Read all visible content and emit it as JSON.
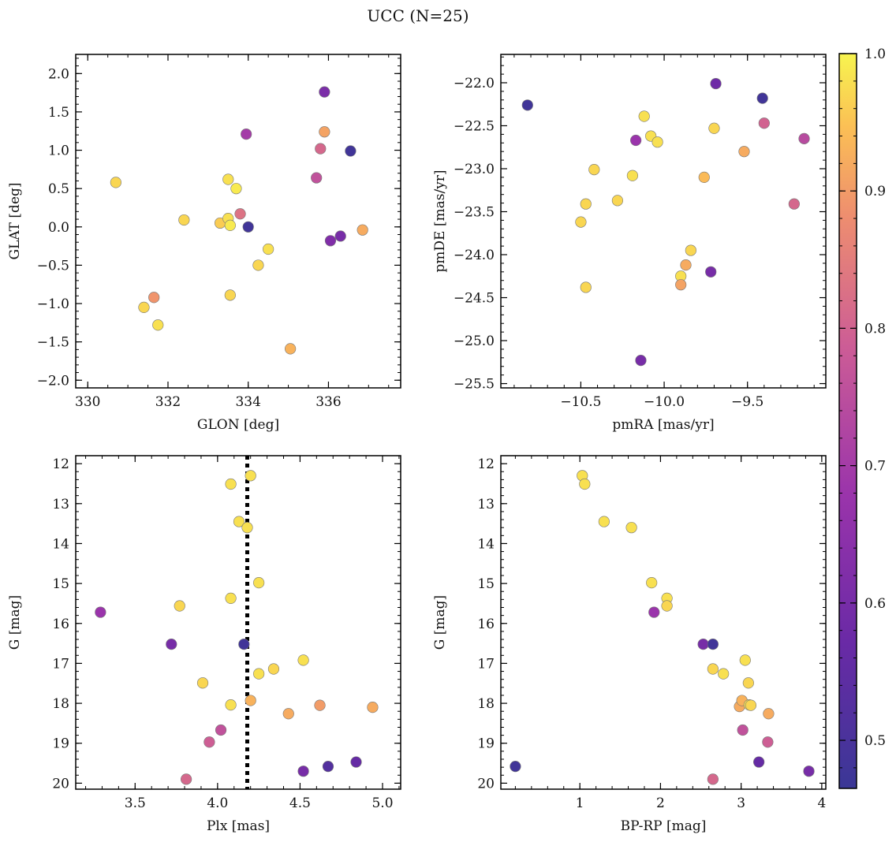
{
  "figure": {
    "title": "UCC (N=25)"
  },
  "colorbar": {
    "range": [
      0.465,
      1.0
    ],
    "ticks": [
      0.5,
      0.6,
      0.7,
      0.8,
      0.9,
      1.0
    ],
    "tick_labels": [
      "0.5",
      "0.6",
      "0.7",
      "0.8",
      "0.9",
      "1.0"
    ],
    "colormap": "plasma"
  },
  "chart_data": [
    {
      "type": "scatter",
      "id": "glon-glat",
      "xlabel": "GLON [deg]",
      "ylabel": "GLAT [deg]",
      "xlim": [
        329.7,
        337.8
      ],
      "ylim": [
        -2.1,
        2.25
      ],
      "y_inverted": false,
      "xticks": [
        330,
        332,
        334,
        336
      ],
      "xtick_labels": [
        "330",
        "332",
        "334",
        "336"
      ],
      "yticks": [
        -2.0,
        -1.5,
        -1.0,
        -0.5,
        0.0,
        0.5,
        1.0,
        1.5,
        2.0
      ],
      "ytick_labels": [
        "−2.0",
        "−1.5",
        "−1.0",
        "−0.5",
        "0.0",
        "0.5",
        "1.0",
        "1.5",
        "2.0"
      ],
      "x_minor_step": 0.5,
      "y_minor_step": 0.1,
      "points": [
        {
          "x": 330.7,
          "y": 0.58,
          "c": 0.97
        },
        {
          "x": 331.4,
          "y": -1.05,
          "c": 0.97
        },
        {
          "x": 331.65,
          "y": -0.92,
          "c": 0.89
        },
        {
          "x": 331.75,
          "y": -1.28,
          "c": 0.98
        },
        {
          "x": 332.4,
          "y": 0.09,
          "c": 0.97
        },
        {
          "x": 333.3,
          "y": 0.05,
          "c": 0.96
        },
        {
          "x": 333.5,
          "y": 0.62,
          "c": 0.98
        },
        {
          "x": 333.5,
          "y": 0.11,
          "c": 0.98
        },
        {
          "x": 333.55,
          "y": 0.02,
          "c": 0.99
        },
        {
          "x": 333.55,
          "y": -0.89,
          "c": 0.97
        },
        {
          "x": 333.7,
          "y": 0.5,
          "c": 0.99
        },
        {
          "x": 333.8,
          "y": 0.17,
          "c": 0.83
        },
        {
          "x": 333.95,
          "y": 1.21,
          "c": 0.7
        },
        {
          "x": 334.0,
          "y": 0.0,
          "c": 0.48
        },
        {
          "x": 334.25,
          "y": -0.5,
          "c": 0.97
        },
        {
          "x": 334.5,
          "y": -0.29,
          "c": 0.98
        },
        {
          "x": 335.05,
          "y": -1.59,
          "c": 0.93
        },
        {
          "x": 335.7,
          "y": 0.64,
          "c": 0.76
        },
        {
          "x": 335.8,
          "y": 1.02,
          "c": 0.81
        },
        {
          "x": 335.9,
          "y": 1.76,
          "c": 0.61
        },
        {
          "x": 335.9,
          "y": 1.24,
          "c": 0.91
        },
        {
          "x": 336.05,
          "y": -0.18,
          "c": 0.62
        },
        {
          "x": 336.3,
          "y": -0.12,
          "c": 0.6
        },
        {
          "x": 336.55,
          "y": 0.99,
          "c": 0.48
        },
        {
          "x": 336.85,
          "y": -0.04,
          "c": 0.92
        }
      ]
    },
    {
      "type": "scatter",
      "id": "pmra-pmde",
      "xlabel": "pmRA [mas/yr]",
      "ylabel": "pmDE [mas/yr]",
      "xlim": [
        -10.98,
        -9.03
      ],
      "ylim": [
        -25.55,
        -21.67
      ],
      "y_inverted": false,
      "xticks": [
        -10.5,
        -10.0,
        -9.5
      ],
      "xtick_labels": [
        "−10.5",
        "−10.0",
        "−9.5"
      ],
      "yticks": [
        -25.5,
        -25.0,
        -24.5,
        -24.0,
        -23.5,
        -23.0,
        -22.5,
        -22.0
      ],
      "ytick_labels": [
        "−25.5",
        "−25.0",
        "−24.5",
        "−24.0",
        "−23.5",
        "−23.0",
        "−22.5",
        "−22.0"
      ],
      "x_minor_step": 0.1,
      "y_minor_step": 0.1,
      "points": [
        {
          "x": -10.82,
          "y": -22.26,
          "c": 0.48
        },
        {
          "x": -10.5,
          "y": -23.62,
          "c": 0.97
        },
        {
          "x": -10.47,
          "y": -23.41,
          "c": 0.97
        },
        {
          "x": -10.47,
          "y": -24.38,
          "c": 0.97
        },
        {
          "x": -10.42,
          "y": -23.01,
          "c": 0.97
        },
        {
          "x": -10.28,
          "y": -23.37,
          "c": 0.97
        },
        {
          "x": -10.19,
          "y": -23.08,
          "c": 0.98
        },
        {
          "x": -10.17,
          "y": -22.67,
          "c": 0.68
        },
        {
          "x": -10.14,
          "y": -25.23,
          "c": 0.6
        },
        {
          "x": -10.12,
          "y": -22.39,
          "c": 0.98
        },
        {
          "x": -10.08,
          "y": -22.62,
          "c": 0.98
        },
        {
          "x": -10.04,
          "y": -22.69,
          "c": 0.98
        },
        {
          "x": -9.9,
          "y": -24.25,
          "c": 0.98
        },
        {
          "x": -9.9,
          "y": -24.35,
          "c": 0.91
        },
        {
          "x": -9.87,
          "y": -24.12,
          "c": 0.92
        },
        {
          "x": -9.84,
          "y": -23.95,
          "c": 0.97
        },
        {
          "x": -9.76,
          "y": -23.1,
          "c": 0.94
        },
        {
          "x": -9.72,
          "y": -24.2,
          "c": 0.6
        },
        {
          "x": -9.7,
          "y": -22.53,
          "c": 0.97
        },
        {
          "x": -9.69,
          "y": -22.01,
          "c": 0.58
        },
        {
          "x": -9.52,
          "y": -22.8,
          "c": 0.92
        },
        {
          "x": -9.41,
          "y": -22.18,
          "c": 0.48
        },
        {
          "x": -9.4,
          "y": -22.47,
          "c": 0.8
        },
        {
          "x": -9.22,
          "y": -23.41,
          "c": 0.81
        },
        {
          "x": -9.16,
          "y": -22.65,
          "c": 0.74
        }
      ]
    },
    {
      "type": "scatter",
      "id": "plx-g",
      "xlabel": "Plx [mas]",
      "ylabel": "G [mag]",
      "xlim": [
        3.14,
        5.11
      ],
      "ylim": [
        20.15,
        11.8
      ],
      "y_inverted": true,
      "xticks": [
        3.5,
        4.0,
        4.5,
        5.0
      ],
      "xtick_labels": [
        "3.5",
        "4.0",
        "4.5",
        "5.0"
      ],
      "yticks": [
        12,
        13,
        14,
        15,
        16,
        17,
        18,
        19,
        20
      ],
      "ytick_labels": [
        "12",
        "13",
        "14",
        "15",
        "16",
        "17",
        "18",
        "19",
        "20"
      ],
      "x_minor_step": 0.1,
      "y_minor_step": 0.2,
      "vline": {
        "x": 4.18,
        "style": "dotted",
        "color": "#000000"
      },
      "points": [
        {
          "x": 3.29,
          "y": 15.72,
          "c": 0.68
        },
        {
          "x": 3.72,
          "y": 16.52,
          "c": 0.6
        },
        {
          "x": 3.77,
          "y": 15.56,
          "c": 0.97
        },
        {
          "x": 3.81,
          "y": 19.9,
          "c": 0.81
        },
        {
          "x": 3.91,
          "y": 17.49,
          "c": 0.97
        },
        {
          "x": 3.95,
          "y": 18.97,
          "c": 0.79
        },
        {
          "x": 4.02,
          "y": 18.67,
          "c": 0.76
        },
        {
          "x": 4.08,
          "y": 12.51,
          "c": 0.98
        },
        {
          "x": 4.08,
          "y": 15.37,
          "c": 0.98
        },
        {
          "x": 4.08,
          "y": 18.04,
          "c": 0.98
        },
        {
          "x": 4.13,
          "y": 13.45,
          "c": 0.98
        },
        {
          "x": 4.16,
          "y": 16.52,
          "c": 0.48
        },
        {
          "x": 4.18,
          "y": 13.6,
          "c": 0.98
        },
        {
          "x": 4.2,
          "y": 12.3,
          "c": 0.98
        },
        {
          "x": 4.2,
          "y": 17.93,
          "c": 0.93
        },
        {
          "x": 4.25,
          "y": 14.98,
          "c": 0.98
        },
        {
          "x": 4.25,
          "y": 17.26,
          "c": 0.98
        },
        {
          "x": 4.34,
          "y": 17.14,
          "c": 0.97
        },
        {
          "x": 4.43,
          "y": 18.26,
          "c": 0.92
        },
        {
          "x": 4.52,
          "y": 16.92,
          "c": 0.98
        },
        {
          "x": 4.52,
          "y": 19.7,
          "c": 0.6
        },
        {
          "x": 4.62,
          "y": 18.05,
          "c": 0.9
        },
        {
          "x": 4.67,
          "y": 19.58,
          "c": 0.52
        },
        {
          "x": 4.84,
          "y": 19.47,
          "c": 0.56
        },
        {
          "x": 4.94,
          "y": 18.1,
          "c": 0.92
        }
      ]
    },
    {
      "type": "scatter",
      "id": "bprp-g",
      "xlabel": "BP-RP [mag]",
      "ylabel": "G [mag]",
      "xlim": [
        0.02,
        4.05
      ],
      "ylim": [
        20.15,
        11.8
      ],
      "y_inverted": true,
      "xticks": [
        1,
        2,
        3,
        4
      ],
      "xtick_labels": [
        "1",
        "2",
        "3",
        "4"
      ],
      "yticks": [
        12,
        13,
        14,
        15,
        16,
        17,
        18,
        19,
        20
      ],
      "ytick_labels": [
        "12",
        "13",
        "14",
        "15",
        "16",
        "17",
        "18",
        "19",
        "20"
      ],
      "x_minor_step": 0.2,
      "y_minor_step": 0.2,
      "points": [
        {
          "x": 0.2,
          "y": 19.58,
          "c": 0.48
        },
        {
          "x": 1.03,
          "y": 12.3,
          "c": 0.98
        },
        {
          "x": 1.06,
          "y": 12.51,
          "c": 0.98
        },
        {
          "x": 1.3,
          "y": 13.45,
          "c": 0.98
        },
        {
          "x": 1.64,
          "y": 13.6,
          "c": 0.98
        },
        {
          "x": 1.89,
          "y": 14.98,
          "c": 0.98
        },
        {
          "x": 1.92,
          "y": 15.72,
          "c": 0.68
        },
        {
          "x": 2.08,
          "y": 15.37,
          "c": 0.98
        },
        {
          "x": 2.08,
          "y": 15.56,
          "c": 0.97
        },
        {
          "x": 2.53,
          "y": 16.52,
          "c": 0.6
        },
        {
          "x": 2.65,
          "y": 16.52,
          "c": 0.48
        },
        {
          "x": 2.65,
          "y": 17.14,
          "c": 0.97
        },
        {
          "x": 2.65,
          "y": 19.9,
          "c": 0.81
        },
        {
          "x": 2.78,
          "y": 17.26,
          "c": 0.98
        },
        {
          "x": 2.98,
          "y": 18.08,
          "c": 0.92
        },
        {
          "x": 3.01,
          "y": 17.93,
          "c": 0.93
        },
        {
          "x": 3.02,
          "y": 18.67,
          "c": 0.76
        },
        {
          "x": 3.05,
          "y": 16.92,
          "c": 0.98
        },
        {
          "x": 3.09,
          "y": 17.49,
          "c": 0.97
        },
        {
          "x": 3.1,
          "y": 18.04,
          "c": 0.98
        },
        {
          "x": 3.12,
          "y": 18.05,
          "c": 0.97
        },
        {
          "x": 3.22,
          "y": 19.47,
          "c": 0.56
        },
        {
          "x": 3.33,
          "y": 18.97,
          "c": 0.79
        },
        {
          "x": 3.34,
          "y": 18.26,
          "c": 0.92
        },
        {
          "x": 3.84,
          "y": 19.7,
          "c": 0.6
        }
      ]
    }
  ]
}
